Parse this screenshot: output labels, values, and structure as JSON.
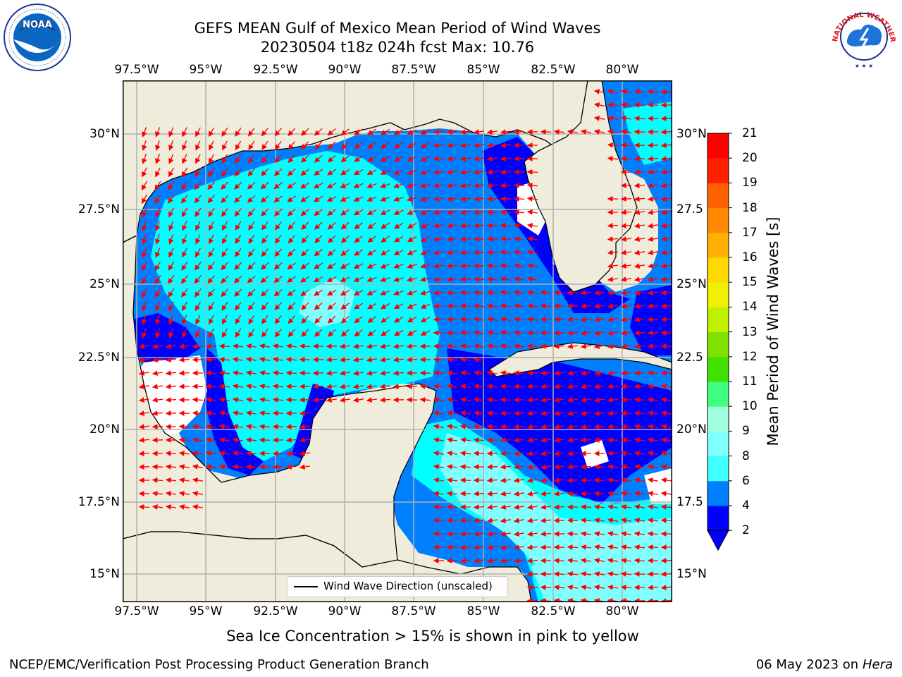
{
  "title_line1": "GEFS MEAN Gulf of Mexico Mean Period of Wind Waves",
  "title_line2": "20230504 t18z 024h fcst   Max: 10.76",
  "lon_labels": [
    "97.5°W",
    "95°W",
    "92.5°W",
    "90°W",
    "87.5°W",
    "85°W",
    "82.5°W",
    "80°W"
  ],
  "lat_labels_left": [
    "30°N",
    "27.5°N",
    "25°N",
    "22.5°N",
    "20°N",
    "17.5°N",
    "15°N"
  ],
  "lat_labels_right": [
    "30°N",
    "27.5",
    "25°N",
    "22.5",
    "20°N",
    "17.5",
    "15°N"
  ],
  "colorbar": {
    "label": "Mean Period of Wind Waves [s]",
    "ticks": [
      "2",
      "4",
      "6",
      "8",
      "9",
      "10",
      "11",
      "12",
      "13",
      "14",
      "15",
      "16",
      "17",
      "18",
      "19",
      "20",
      "21"
    ],
    "colors": [
      "#0000ff",
      "#0080ff",
      "#00ffff",
      "#40ffff",
      "#80ffff",
      "#a0ffe0",
      "#40ff80",
      "#00e000",
      "#40e000",
      "#80e000",
      "#c0f000",
      "#f0f000",
      "#ffff00",
      "#ffd800",
      "#ffb000",
      "#ff8800",
      "#ff6000",
      "#ff4000",
      "#ff2000",
      "#ff0000"
    ],
    "min": 2,
    "max": 21
  },
  "legend_label": "Wind Wave Direction (unscaled)",
  "note": "Sea Ice Concentration > 15% is shown in pink to yellow",
  "footer_left": "NCEP/EMC/Verification Post Processing Product Generation Branch",
  "footer_date": "06 May 2023 on",
  "footer_host": "Hera",
  "logo_left_text": "NOAA",
  "logo_right_text": "NATIONAL WEATHER SERVICE",
  "land_color": "#efecdc",
  "arrow_color": "#ff0000"
}
